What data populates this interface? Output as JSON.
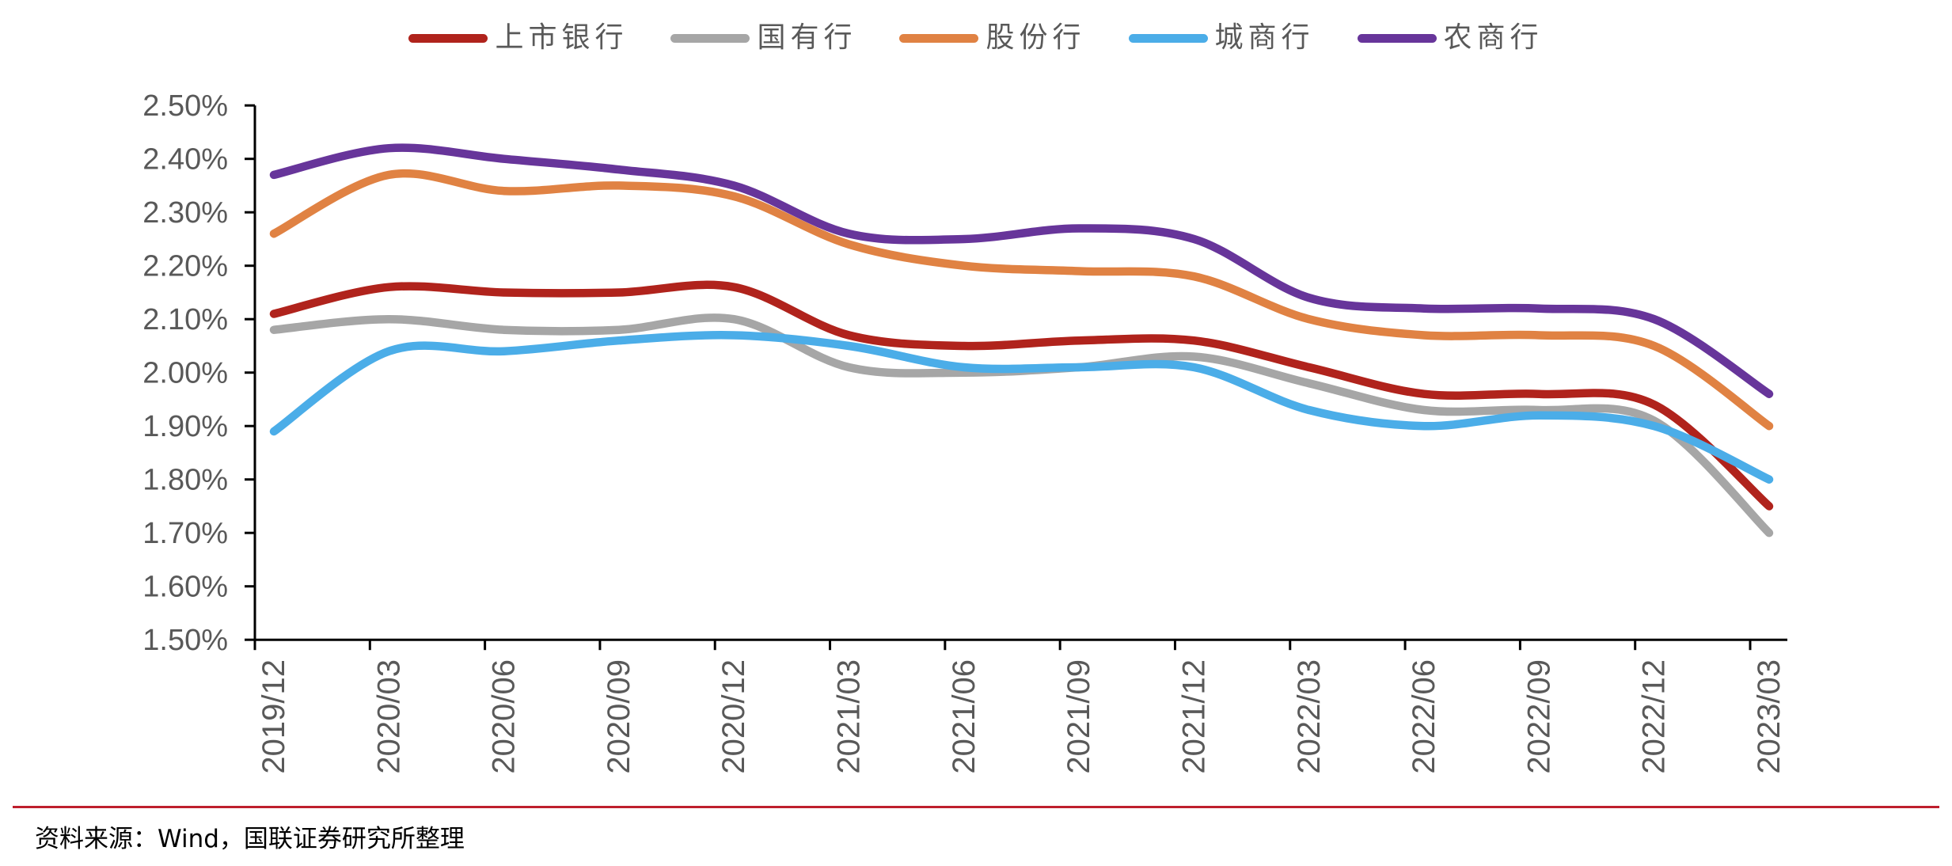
{
  "chart_data": {
    "type": "line",
    "title": "",
    "xlabel": "",
    "ylabel": "",
    "smooth": true,
    "grid": false,
    "legend_position": "top",
    "categories": [
      "2019/12",
      "2020/03",
      "2020/06",
      "2020/09",
      "2020/12",
      "2021/03",
      "2021/06",
      "2021/09",
      "2021/12",
      "2022/03",
      "2022/06",
      "2022/09",
      "2022/12",
      "2023/03"
    ],
    "ylim": [
      1.5,
      2.5
    ],
    "yticks": [
      2.5,
      2.4,
      2.3,
      2.2,
      2.1,
      2.0,
      1.9,
      1.8,
      1.7,
      1.6,
      1.5
    ],
    "ytick_labels": [
      "2.50%",
      "2.40%",
      "2.30%",
      "2.20%",
      "2.10%",
      "2.00%",
      "1.90%",
      "1.80%",
      "1.70%",
      "1.60%",
      "1.50%"
    ],
    "y_unit": "%",
    "series": [
      {
        "name": "上市银行",
        "color": "#B0231C",
        "values": [
          2.11,
          2.16,
          2.15,
          2.15,
          2.16,
          2.07,
          2.05,
          2.06,
          2.06,
          2.01,
          1.96,
          1.96,
          1.94,
          1.75
        ]
      },
      {
        "name": "国有行",
        "color": "#A6A6A6",
        "values": [
          2.08,
          2.1,
          2.08,
          2.08,
          2.1,
          2.01,
          2.0,
          2.01,
          2.03,
          1.98,
          1.93,
          1.93,
          1.91,
          1.7
        ]
      },
      {
        "name": "股份行",
        "color": "#E08243",
        "values": [
          2.26,
          2.37,
          2.34,
          2.35,
          2.33,
          2.24,
          2.2,
          2.19,
          2.18,
          2.1,
          2.07,
          2.07,
          2.05,
          1.9
        ]
      },
      {
        "name": "城商行",
        "color": "#4BADE8",
        "values": [
          1.89,
          2.04,
          2.04,
          2.06,
          2.07,
          2.05,
          2.01,
          2.01,
          2.01,
          1.93,
          1.9,
          1.92,
          1.9,
          1.8
        ]
      },
      {
        "name": "农商行",
        "color": "#67359A",
        "values": [
          2.37,
          2.42,
          2.4,
          2.38,
          2.35,
          2.26,
          2.25,
          2.27,
          2.25,
          2.14,
          2.12,
          2.12,
          2.1,
          1.96
        ]
      }
    ]
  },
  "footer": {
    "source": "资料来源：Wind，国联证券研究所整理"
  },
  "colors": {
    "axis": "#000000",
    "tick_label": "#595959",
    "footer_rule": "#BE1E2D"
  }
}
